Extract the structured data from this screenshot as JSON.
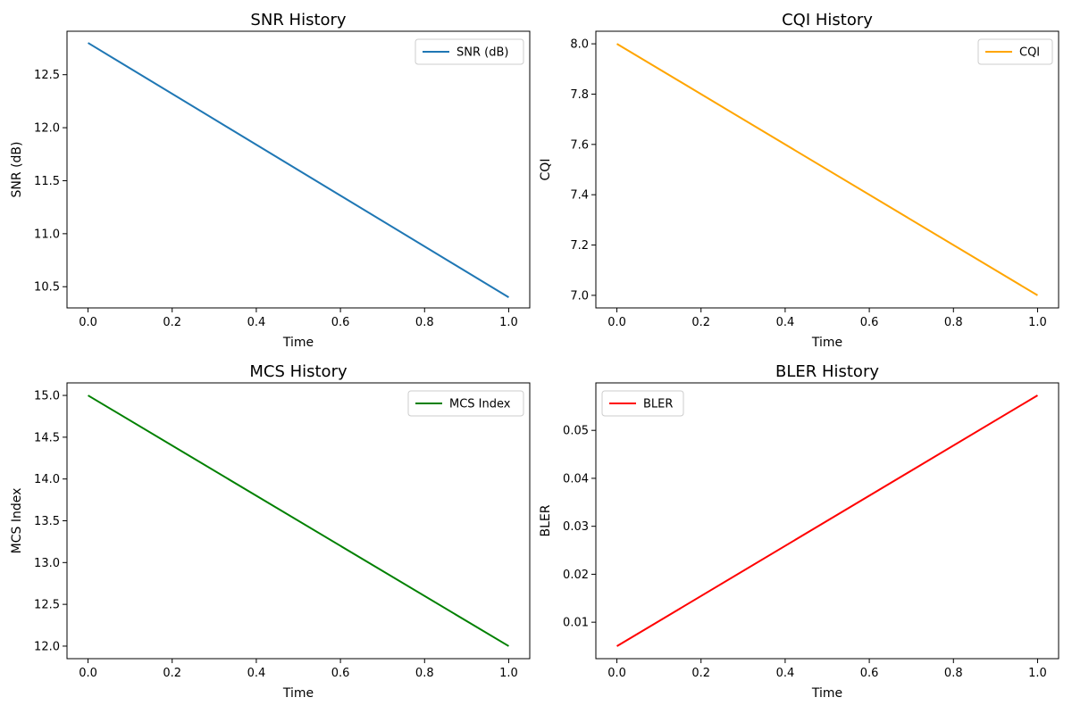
{
  "chart_data": [
    {
      "id": "snr",
      "type": "line",
      "title": "SNR History",
      "xlabel": "Time",
      "ylabel": "SNR (dB)",
      "xlim": [
        -0.05,
        1.05
      ],
      "ylim": [
        10.3,
        12.91
      ],
      "xticks": [
        0.0,
        0.2,
        0.4,
        0.6,
        0.8,
        1.0
      ],
      "xtick_labels": [
        "0.0",
        "0.2",
        "0.4",
        "0.6",
        "0.8",
        "1.0"
      ],
      "yticks": [
        10.5,
        11.0,
        11.5,
        12.0,
        12.5
      ],
      "ytick_labels": [
        "10.5",
        "11.0",
        "11.5",
        "12.0",
        "12.5"
      ],
      "grid": false,
      "legend_position": "top-right",
      "series": [
        {
          "name": "SNR (dB)",
          "color": "#1f77b4",
          "x": [
            0.0,
            1.0
          ],
          "y": [
            12.8,
            10.4
          ]
        }
      ]
    },
    {
      "id": "cqi",
      "type": "line",
      "title": "CQI History",
      "xlabel": "Time",
      "ylabel": "CQI",
      "xlim": [
        -0.05,
        1.05
      ],
      "ylim": [
        6.95,
        8.05
      ],
      "xticks": [
        0.0,
        0.2,
        0.4,
        0.6,
        0.8,
        1.0
      ],
      "xtick_labels": [
        "0.0",
        "0.2",
        "0.4",
        "0.6",
        "0.8",
        "1.0"
      ],
      "yticks": [
        7.0,
        7.2,
        7.4,
        7.6,
        7.8,
        8.0
      ],
      "ytick_labels": [
        "7.0",
        "7.2",
        "7.4",
        "7.6",
        "7.8",
        "8.0"
      ],
      "grid": false,
      "legend_position": "top-right",
      "series": [
        {
          "name": "CQI",
          "color": "#ffa500",
          "x": [
            0.0,
            1.0
          ],
          "y": [
            8.0,
            7.0
          ]
        }
      ]
    },
    {
      "id": "mcs",
      "type": "line",
      "title": "MCS History",
      "xlabel": "Time",
      "ylabel": "MCS Index",
      "xlim": [
        -0.05,
        1.05
      ],
      "ylim": [
        11.85,
        15.15
      ],
      "xticks": [
        0.0,
        0.2,
        0.4,
        0.6,
        0.8,
        1.0
      ],
      "xtick_labels": [
        "0.0",
        "0.2",
        "0.4",
        "0.6",
        "0.8",
        "1.0"
      ],
      "yticks": [
        12.0,
        12.5,
        13.0,
        13.5,
        14.0,
        14.5,
        15.0
      ],
      "ytick_labels": [
        "12.0",
        "12.5",
        "13.0",
        "13.5",
        "14.0",
        "14.5",
        "15.0"
      ],
      "grid": false,
      "legend_position": "top-right",
      "series": [
        {
          "name": "MCS Index",
          "color": "#008000",
          "x": [
            0.0,
            1.0
          ],
          "y": [
            15.0,
            12.0
          ]
        }
      ]
    },
    {
      "id": "bler",
      "type": "line",
      "title": "BLER History",
      "xlabel": "Time",
      "ylabel": "BLER",
      "xlim": [
        -0.05,
        1.05
      ],
      "ylim": [
        0.0024,
        0.0599
      ],
      "xticks": [
        0.0,
        0.2,
        0.4,
        0.6,
        0.8,
        1.0
      ],
      "xtick_labels": [
        "0.0",
        "0.2",
        "0.4",
        "0.6",
        "0.8",
        "1.0"
      ],
      "yticks": [
        0.01,
        0.02,
        0.03,
        0.04,
        0.05
      ],
      "ytick_labels": [
        "0.01",
        "0.02",
        "0.03",
        "0.04",
        "0.05"
      ],
      "grid": false,
      "legend_position": "top-left",
      "series": [
        {
          "name": "BLER",
          "color": "#ff0000",
          "x": [
            0.0,
            1.0
          ],
          "y": [
            0.005,
            0.0573
          ]
        }
      ]
    }
  ]
}
